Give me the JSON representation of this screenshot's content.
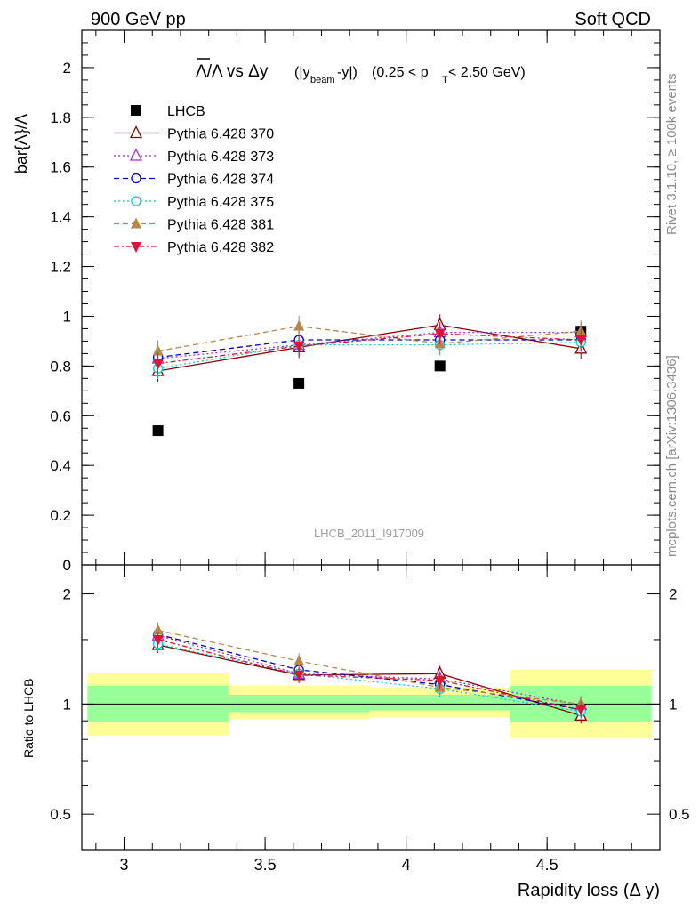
{
  "header": {
    "left": "900 GeV pp",
    "right": "Soft QCD"
  },
  "side_text": {
    "rivet": "Rivet 3.1.10, ≥ 100k events",
    "mcplots": "mcplots.cern.ch [arXiv:1306.3436]"
  },
  "watermark": "LHCB_2011_I917009",
  "title": {
    "main": "Λ/Λ vs Δy",
    "sub": "(|y",
    "beam": "beam",
    "sub2": "-y|)",
    "range": "(0.25 < p",
    "pt": "T",
    "range2": " < 2.50 GeV)"
  },
  "ylabel": "bar{Λ}/Λ",
  "ratio_ylabel": "Ratio to LHCB",
  "xlabel": "Rapidity loss (Δ y)",
  "chart_data": [
    {
      "type": "scatter",
      "panel": "main",
      "xlim": [
        2.85,
        4.9
      ],
      "ylim": [
        0,
        2.15
      ],
      "yticks": [
        0,
        0.2,
        0.4,
        0.6,
        0.8,
        1,
        1.2,
        1.4,
        1.6,
        1.8,
        2
      ],
      "ytick_labels": [
        "0",
        "0.2",
        "0.4",
        "0.6",
        "0.8",
        "1",
        "1.2",
        "1.4",
        "1.6",
        "1.8",
        "2"
      ],
      "x": [
        3.12,
        3.62,
        4.12,
        4.62
      ],
      "legend_position": "top-left",
      "series": [
        {
          "name": "LHCB",
          "marker": "square",
          "color": "#000000",
          "line": "none",
          "values": [
            0.54,
            0.73,
            0.8,
            0.94
          ]
        },
        {
          "name": "Pythia 6.428 370",
          "marker": "triangle-open",
          "color": "#8b0000",
          "line": "solid",
          "values": [
            0.78,
            0.875,
            0.965,
            0.87
          ]
        },
        {
          "name": "Pythia 6.428 373",
          "marker": "triangle-open",
          "color": "#9932cc",
          "line": "dotted",
          "values": [
            0.83,
            0.885,
            0.935,
            0.935
          ]
        },
        {
          "name": "Pythia 6.428 374",
          "marker": "circle-open",
          "color": "#0000cd",
          "line": "dashed",
          "values": [
            0.835,
            0.905,
            0.905,
            0.905
          ]
        },
        {
          "name": "Pythia 6.428 375",
          "marker": "circle-open",
          "color": "#00ced1",
          "line": "dotted",
          "values": [
            0.79,
            0.885,
            0.885,
            0.895
          ]
        },
        {
          "name": "Pythia 6.428 381",
          "marker": "triangle",
          "color": "#b8864b",
          "line": "dashed",
          "values": [
            0.86,
            0.96,
            0.89,
            0.94
          ]
        },
        {
          "name": "Pythia 6.428 382",
          "marker": "triangle-down",
          "color": "#dc143c",
          "line": "dashdot",
          "values": [
            0.81,
            0.88,
            0.93,
            0.905
          ]
        }
      ]
    },
    {
      "type": "line",
      "panel": "ratio",
      "ylabel": "Ratio to LHCB",
      "xlabel": "Rapidity loss (Δ y)",
      "xlim": [
        2.85,
        4.9
      ],
      "ylim": [
        0.4,
        2.4
      ],
      "scale": "log",
      "xticks": [
        3,
        3.5,
        4,
        4.5
      ],
      "xtick_labels": [
        "3",
        "3.5",
        "4",
        "4.5"
      ],
      "yticks": [
        0.5,
        1,
        2
      ],
      "ytick_labels": [
        "0.5",
        "1",
        "2"
      ],
      "bins": [
        [
          2.87,
          3.37
        ],
        [
          3.37,
          3.87
        ],
        [
          3.87,
          4.37
        ],
        [
          4.37,
          4.87
        ]
      ],
      "band_inner": [
        [
          0.89,
          1.12
        ],
        [
          0.95,
          1.06
        ],
        [
          0.96,
          1.06
        ],
        [
          0.89,
          1.12
        ]
      ],
      "band_outer": [
        [
          0.82,
          1.22
        ],
        [
          0.91,
          1.12
        ],
        [
          0.92,
          1.11
        ],
        [
          0.81,
          1.24
        ]
      ],
      "band_colors": {
        "inner": "#99ff99",
        "outer": "#ffff99"
      },
      "x": [
        3.12,
        3.62,
        4.12,
        4.62
      ],
      "series": [
        {
          "name": "Pythia 6.428 370",
          "values": [
            1.45,
            1.2,
            1.21,
            0.93
          ]
        },
        {
          "name": "Pythia 6.428 373",
          "values": [
            1.54,
            1.21,
            1.17,
            0.995
          ]
        },
        {
          "name": "Pythia 6.428 374",
          "values": [
            1.55,
            1.24,
            1.13,
            0.965
          ]
        },
        {
          "name": "Pythia 6.428 375",
          "values": [
            1.46,
            1.21,
            1.1,
            0.955
          ]
        },
        {
          "name": "Pythia 6.428 381",
          "values": [
            1.59,
            1.31,
            1.11,
            1.0
          ]
        },
        {
          "name": "Pythia 6.428 382",
          "values": [
            1.5,
            1.2,
            1.16,
            0.965
          ]
        }
      ]
    }
  ]
}
